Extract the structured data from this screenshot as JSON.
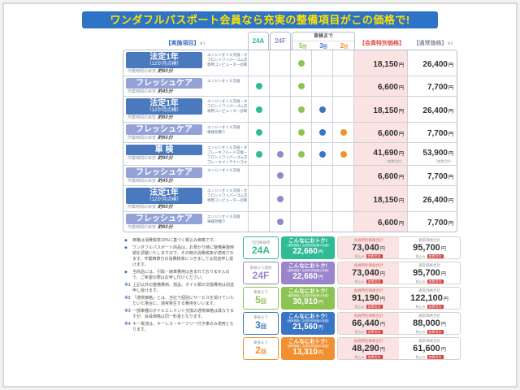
{
  "banner": {
    "text": "ワンダフルパスポート会員なら充実の整備項目がこの価格で!"
  },
  "header": {
    "items_label": "【実施項目】",
    "items_note": "※1",
    "col_24a": "24A",
    "col_24f": "24F",
    "shaken_group": "車検まで",
    "col_5": {
      "num": "5",
      "unit": "回"
    },
    "col_3": {
      "num": "3",
      "unit": "回"
    },
    "col_2": {
      "num": "2",
      "unit": "回"
    },
    "member_label": "【会員特別価格】",
    "normal_label": "【通常価格】",
    "normal_note": "※2"
  },
  "legend_colors": {
    "a24": "#2fbb96",
    "f24": "#9a84cb",
    "r5": "#8cc454",
    "r3": "#3a75c4",
    "r2": "#f09030"
  },
  "common": {
    "yen": "円",
    "time_prefix": "作業時間の目安"
  },
  "table_rows": [
    {
      "title": "法定1年",
      "sub": "（12か月点検）",
      "variant": "dark",
      "time": "約60分",
      "desc": [
        "エンジンオイル交換・オイルエレメント交換",
        "フロントワイパーゴム交換・キー電池交換",
        "専用コンピューター診断"
      ],
      "dots": [
        "r5"
      ],
      "member": "18,150",
      "normal": "26,400",
      "price_note": ""
    },
    {
      "title": "フレッシュケア",
      "sub": "",
      "variant": "light",
      "time": "約45分",
      "desc": [
        "エンジンオイル交換"
      ],
      "dots": [
        "a24",
        "r5"
      ],
      "member": "6,600",
      "normal": "7,700",
      "price_note": ""
    },
    {
      "title": "法定1年",
      "sub": "（12か月点検）",
      "variant": "dark",
      "time": "約60分",
      "desc": [
        "エンジンオイル交換・オイルエレメント交換",
        "フロントワイパーゴム交換・キー電池交換",
        "専用コンピューター診断"
      ],
      "dots": [
        "a24",
        "r5",
        "r3"
      ],
      "member": "18,150",
      "normal": "26,400",
      "price_note": ""
    },
    {
      "title": "フレッシュケア",
      "sub": "",
      "variant": "light",
      "time": "約60分",
      "desc": [
        "エンジンオイル交換",
        "車検見積り"
      ],
      "dots": [
        "a24",
        "r5",
        "r3",
        "r2"
      ],
      "member": "6,600",
      "normal": "7,700",
      "price_note": ""
    },
    {
      "title": "車 検",
      "sub": "",
      "variant": "dark",
      "time": "約90分",
      "desc": [
        "エンジンオイル交換・オイルエレメント交換",
        "ブレーキフルード交換・クーラントプラスプレミアム",
        "フロントワイパーゴム交換・キー電池交換",
        "ブレーキメンテナンスキット・専用コンピューター診断"
      ],
      "dots": [
        "a24",
        "f24",
        "r5",
        "r3",
        "r2"
      ],
      "member": "41,690",
      "normal": "53,900",
      "price_note": "（諸費用別）"
    },
    {
      "title": "フレッシュケア",
      "sub": "",
      "variant": "light",
      "time": "約45分",
      "desc": [
        "エンジンオイル交換"
      ],
      "dots": [
        "f24"
      ],
      "member": "6,600",
      "normal": "7,700",
      "price_note": ""
    },
    {
      "title": "法定1年",
      "sub": "（12か月点検）",
      "variant": "dark",
      "time": "約60分",
      "desc": [
        "エンジンオイル交換・オイルエレメント交換",
        "フロントワイパーゴム交換・キー電池交換",
        "専用コンピューター診断"
      ],
      "dots": [
        "f24"
      ],
      "member": "18,150",
      "normal": "26,400",
      "price_note": ""
    },
    {
      "title": "フレッシュケア",
      "sub": "",
      "variant": "light",
      "time": "約60分",
      "desc": [
        "エンジンオイル交換",
        "車検見積り"
      ],
      "dots": [
        "f24"
      ],
      "member": "6,600",
      "normal": "7,700",
      "price_note": ""
    }
  ],
  "notes": [
    {
      "bullet": "◆",
      "text": "価格は消費税率10%に基づく税込み価格です。"
    },
    {
      "bullet": "◆",
      "text": "ワンダフルパスポート商品は、お預かり時に整備実施時期を調整いたしますので、その時の消費税率が適用されます。作業精算分の消費税率につきましては別途申し受けます。"
    },
    {
      "bullet": "◆",
      "text": "当商品には、引取・納車費用は含まれておりませんので、ご希望の際はお申し付けください。"
    },
    {
      "bullet": "※1",
      "text": "上記以外の整備費用、部品、オイル類の交換費用は別途申し受けます。"
    },
    {
      "bullet": "※2",
      "text": "「通常価格」とは、当社で個別にサービスを受けていただいた場合に、通常発生する費用をいいます。"
    },
    {
      "bullet": "※3",
      "text": "一部車種のオイルエレメント交換の通常価格は異なりますが、会員価格は同一料金となります。"
    },
    {
      "bullet": "※4",
      "text": "キー電池は、キーレス・キーフリー付き車のみ適用となります。"
    }
  ],
  "summary": {
    "member_caption": "会員特別価格合計",
    "normal_caption": "通常価格合計",
    "badge_title": "こんなにおトク!",
    "badge_sub": "（通常価格と会員特別価格の差額）",
    "tax_note": "税込み",
    "chip": "諸費用別",
    "rows": [
      {
        "top": "次回車検時",
        "num": "24A",
        "unit": "",
        "key": "a24",
        "save": "22,660",
        "member": "73,040",
        "normal": "95,700"
      },
      {
        "top": "車検から開始",
        "num": "24F",
        "unit": "",
        "key": "f24",
        "save": "22,660",
        "member": "73,040",
        "normal": "95,700"
      },
      {
        "top": "車検まで",
        "num": "5",
        "unit": "回",
        "key": "r5",
        "save": "30,910",
        "member": "91,190",
        "normal": "122,100"
      },
      {
        "top": "車検まで",
        "num": "3",
        "unit": "回",
        "key": "r3",
        "save": "21,560",
        "member": "66,440",
        "normal": "88,000"
      },
      {
        "top": "車検まで",
        "num": "2",
        "unit": "回",
        "key": "r2",
        "save": "13,310",
        "member": "48,290",
        "normal": "61,600"
      }
    ]
  }
}
